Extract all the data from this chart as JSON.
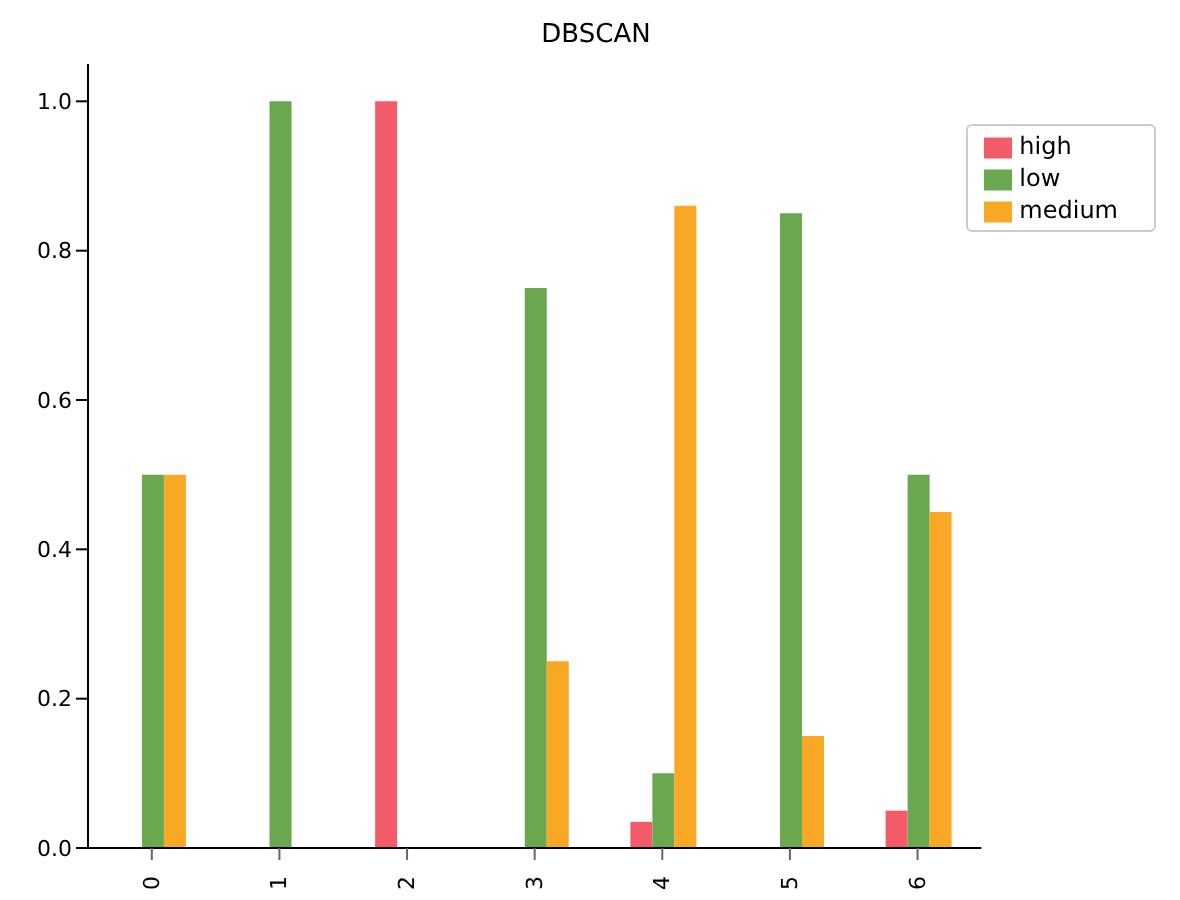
{
  "chart_data": {
    "type": "bar",
    "title": "DBSCAN",
    "categories": [
      "0",
      "1",
      "2",
      "3",
      "4",
      "5",
      "6"
    ],
    "series": [
      {
        "name": "high",
        "color": "#f45b69",
        "values": [
          0,
          0,
          1.0,
          0,
          0.035,
          0,
          0.05
        ]
      },
      {
        "name": "low",
        "color": "#6aa84f",
        "values": [
          0.5,
          1.0,
          0,
          0.75,
          0.1,
          0.85,
          0.5
        ]
      },
      {
        "name": "medium",
        "color": "#f9a825",
        "values": [
          0.5,
          0,
          0,
          0.25,
          0.86,
          0.15,
          0.45
        ]
      }
    ],
    "ylim": [
      0,
      1.05
    ],
    "yticks": [
      {
        "value": 0,
        "label": "0.0"
      },
      {
        "value": 0.2,
        "label": "0.2"
      },
      {
        "value": 0.4,
        "label": "0.4"
      },
      {
        "value": 0.6,
        "label": "0.6"
      },
      {
        "value": 0.8,
        "label": "0.8"
      },
      {
        "value": 1.0,
        "label": "1.0"
      }
    ],
    "grid": false,
    "legend": "top right"
  }
}
